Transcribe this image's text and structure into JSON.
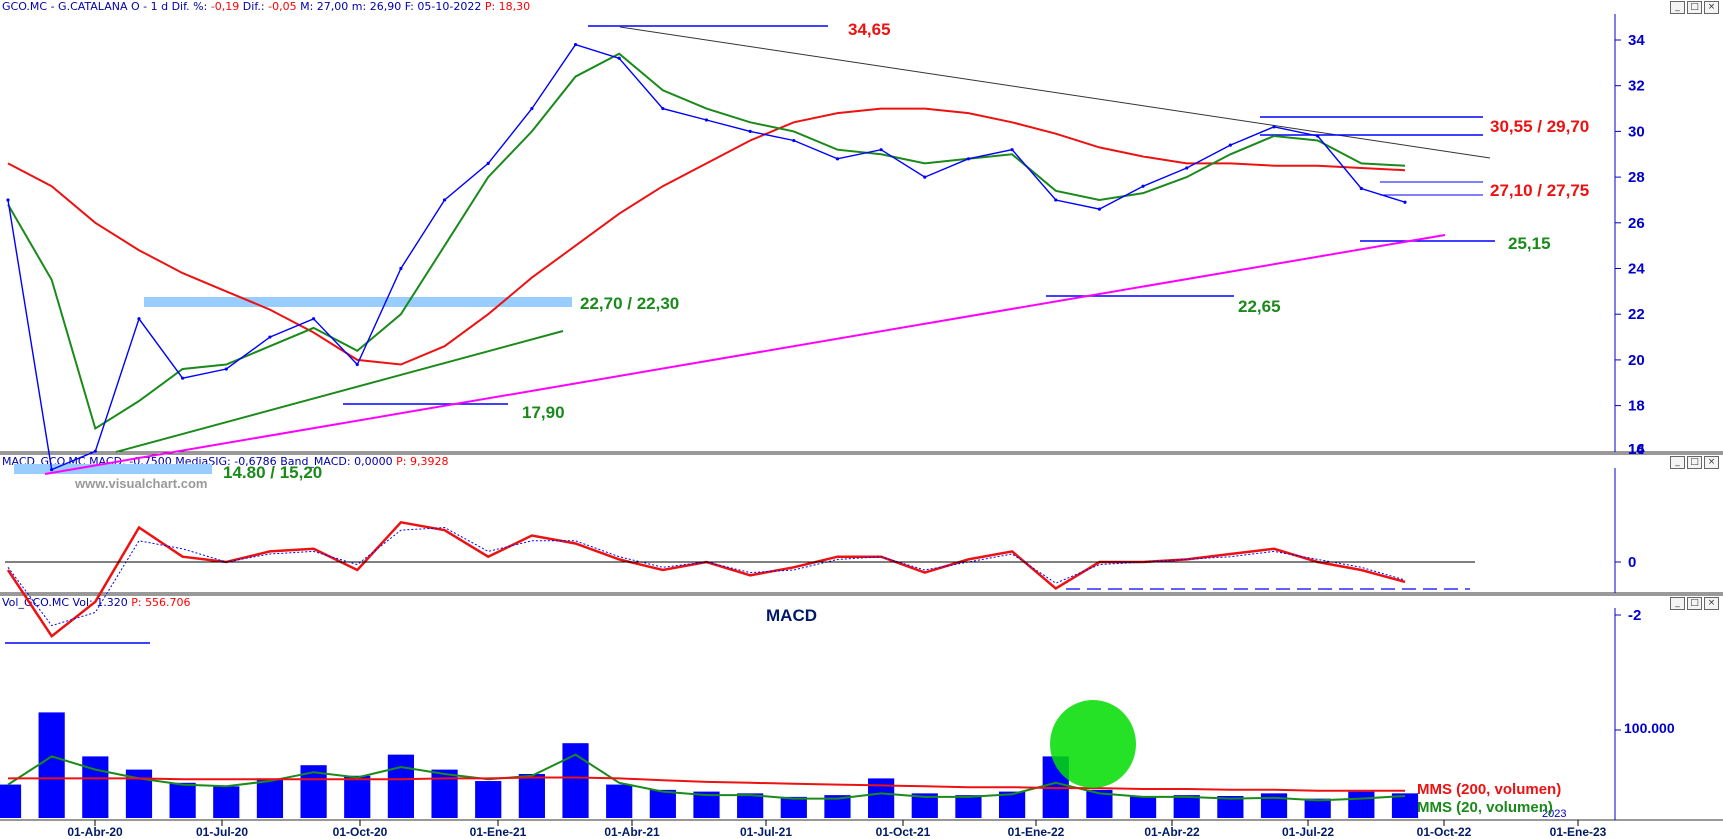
{
  "panels": {
    "price": {
      "header": {
        "symbol": "GCO.MC - G.CATALANA O -  1 d",
        "dif_pct_label": "Dif. %:",
        "dif_pct": "-0,19",
        "dif_label": "Dif.:",
        "dif": "-0,05",
        "max_label": "M:",
        "max": "27,00",
        "min_label": "m:",
        "min": "26,90",
        "date_label": "F:",
        "date": "05-10-2022",
        "p_label": "P:",
        "p": "18,30"
      },
      "watermark": "www.visualchart.com",
      "yticks": [
        "14",
        "16",
        "18",
        "20",
        "22",
        "24",
        "26",
        "28",
        "30",
        "32",
        "34"
      ],
      "annotations": {
        "top": "34,65",
        "resist_right": "30,55 / 29,70",
        "mid_right": "27,10 / 27,75",
        "support_right": "25,15",
        "low_2022": "22,65",
        "zone_2020": "22,70 / 22,30",
        "low_oct20": "17,90",
        "low_2020": "14.80 / 15,20"
      }
    },
    "macd": {
      "header": {
        "name": "MACD_GCO.MC",
        "macd_label": "MACD:",
        "macd": "-0,7500",
        "sig_label": "MediaSIG:",
        "sig": "-0,6786",
        "band_label": "Band_MACD:",
        "band": "0,0000",
        "p_label": "P:",
        "p": "9,3928"
      },
      "title": "MACD",
      "yticks": [
        "-2",
        "0"
      ]
    },
    "volume": {
      "header": {
        "name": "Vol_GCO.MC",
        "vol_label": "Vol:",
        "vol": "1.320",
        "p_label": "P:",
        "p": "556.706"
      },
      "ytick": "100.000",
      "legend_200": "MMS (200, volumen)",
      "legend_20": "MMS (20, volumen)"
    }
  },
  "xaxis": {
    "labels": [
      "01-Abr-20",
      "01-Jul-20",
      "01-Oct-20",
      "01-Ene-21",
      "01-Abr-21",
      "01-Jul-21",
      "01-Oct-21",
      "01-Ene-22",
      "01-Abr-22",
      "01-Jul-22",
      "01-Oct-22",
      "01-Ene-23"
    ],
    "year_tag": "2023"
  },
  "window_buttons": [
    "_",
    "□",
    "×"
  ],
  "colors": {
    "price": "#0000ff",
    "sma_long": "#ee1111",
    "sma_short": "#1a8a1a",
    "support_line": "#ff00ff",
    "trend_green": "#1a8a1a",
    "zone": "#99ccff",
    "label_red": "#ee1111",
    "label_green": "#1a8a1a",
    "axis": "#0000cc",
    "highlight": "#00dd00"
  },
  "chart_data": [
    {
      "type": "line",
      "title": "GCO.MC - G.CATALANA O - 1 d",
      "x": [
        "2020-02",
        "2020-03",
        "2020-04",
        "2020-05",
        "2020-06",
        "2020-07",
        "2020-08",
        "2020-09",
        "2020-10",
        "2020-11",
        "2020-12",
        "2021-01",
        "2021-02",
        "2021-03",
        "2021-04",
        "2021-05",
        "2021-06",
        "2021-07",
        "2021-08",
        "2021-09",
        "2021-10",
        "2021-11",
        "2021-12",
        "2022-01",
        "2022-02",
        "2022-03",
        "2022-04",
        "2022-05",
        "2022-06",
        "2022-07",
        "2022-08",
        "2022-09",
        "2022-10"
      ],
      "series": [
        {
          "values": [
            27.0,
            15.2,
            16.0,
            21.8,
            19.2,
            19.6,
            21.0,
            21.8,
            19.8,
            24.0,
            27.0,
            28.6,
            31.0,
            33.8,
            33.2,
            31.0,
            30.5,
            30.0,
            29.6,
            28.8,
            29.2,
            28.0,
            28.8,
            29.2,
            27.0,
            26.6,
            27.6,
            28.4,
            29.4,
            30.2,
            29.8,
            27.5,
            26.9
          ]
        },
        {
          "values": [
            26.8,
            23.5,
            17.0,
            18.2,
            19.6,
            19.8,
            20.6,
            21.4,
            20.4,
            22.0,
            25.0,
            28.0,
            30.0,
            32.4,
            33.4,
            31.8,
            31.0,
            30.4,
            30.0,
            29.2,
            29.0,
            28.6,
            28.8,
            29.0,
            27.4,
            27.0,
            27.3,
            28.0,
            29.0,
            29.8,
            29.6,
            28.6,
            28.5
          ]
        },
        {
          "values": [
            28.6,
            27.6,
            26.0,
            24.8,
            23.8,
            23.0,
            22.2,
            21.2,
            20.0,
            19.8,
            20.6,
            22.0,
            23.6,
            25.0,
            26.4,
            27.6,
            28.6,
            29.6,
            30.4,
            30.8,
            31.0,
            31.0,
            30.8,
            30.4,
            29.9,
            29.3,
            28.9,
            28.6,
            28.6,
            28.5,
            28.5,
            28.4,
            28.3
          ]
        }
      ],
      "ylim": [
        14,
        35
      ]
    },
    {
      "type": "line",
      "title": "MACD",
      "x": [
        "2020-02",
        "2020-03",
        "2020-04",
        "2020-05",
        "2020-06",
        "2020-07",
        "2020-08",
        "2020-09",
        "2020-10",
        "2020-11",
        "2020-12",
        "2021-01",
        "2021-02",
        "2021-03",
        "2021-04",
        "2021-05",
        "2021-06",
        "2021-07",
        "2021-08",
        "2021-09",
        "2021-10",
        "2021-11",
        "2021-12",
        "2022-01",
        "2022-02",
        "2022-03",
        "2022-04",
        "2022-05",
        "2022-06",
        "2022-07",
        "2022-08",
        "2022-09",
        "2022-10"
      ],
      "series": [
        {
          "values": [
            -0.3,
            -2.8,
            -1.5,
            1.3,
            0.2,
            0.0,
            0.4,
            0.5,
            -0.3,
            1.5,
            1.2,
            0.2,
            1.0,
            0.7,
            0.1,
            -0.3,
            0.0,
            -0.5,
            -0.2,
            0.2,
            0.2,
            -0.4,
            0.1,
            0.4,
            -1.0,
            0.0,
            0.0,
            0.1,
            0.3,
            0.5,
            0.0,
            -0.3,
            -0.75
          ]
        },
        {
          "values": [
            -0.2,
            -2.4,
            -1.9,
            0.8,
            0.5,
            0.0,
            0.3,
            0.4,
            -0.1,
            1.2,
            1.3,
            0.4,
            0.8,
            0.8,
            0.2,
            -0.2,
            0.0,
            -0.4,
            -0.3,
            0.1,
            0.2,
            -0.3,
            0.0,
            0.3,
            -0.8,
            -0.1,
            0.0,
            0.1,
            0.2,
            0.4,
            0.1,
            -0.2,
            -0.68
          ]
        }
      ],
      "ylim": [
        -3.3,
        1.7
      ]
    },
    {
      "type": "bar",
      "x": [
        "2020-02",
        "2020-03",
        "2020-04",
        "2020-05",
        "2020-06",
        "2020-07",
        "2020-08",
        "2020-09",
        "2020-10",
        "2020-11",
        "2020-12",
        "2021-01",
        "2021-02",
        "2021-03",
        "2021-04",
        "2021-05",
        "2021-06",
        "2021-07",
        "2021-08",
        "2021-09",
        "2021-10",
        "2021-11",
        "2021-12",
        "2022-01",
        "2022-02",
        "2022-03",
        "2022-04",
        "2022-05",
        "2022-06",
        "2022-07",
        "2022-08",
        "2022-09",
        "2022-10"
      ],
      "series": [
        {
          "values": [
            38000,
            120000,
            70000,
            55000,
            40000,
            36000,
            45000,
            60000,
            48000,
            72000,
            55000,
            42000,
            50000,
            85000,
            38000,
            32000,
            30000,
            28000,
            24000,
            26000,
            45000,
            28000,
            26000,
            30000,
            70000,
            32000,
            25000,
            26000,
            25000,
            28000,
            22000,
            30000,
            28000
          ]
        },
        {
          "values": [
            38000,
            70000,
            55000,
            45000,
            38000,
            36000,
            42000,
            52000,
            46000,
            58000,
            50000,
            44000,
            48000,
            72000,
            40000,
            30000,
            26000,
            26000,
            22000,
            22000,
            28000,
            24000,
            24000,
            27000,
            40000,
            28000,
            24000,
            24000,
            22000,
            23000,
            20000,
            22000,
            25000
          ]
        },
        {
          "values": [
            45000,
            45000,
            45000,
            45000,
            44000,
            44000,
            44000,
            44000,
            44000,
            44000,
            45000,
            45000,
            46000,
            46000,
            45000,
            43000,
            41000,
            40000,
            39000,
            38000,
            37000,
            36000,
            35000,
            35000,
            34000,
            34000,
            33000,
            33000,
            32000,
            32000,
            31000,
            31000,
            31000
          ]
        }
      ],
      "ylim": [
        0,
        165000
      ]
    }
  ]
}
